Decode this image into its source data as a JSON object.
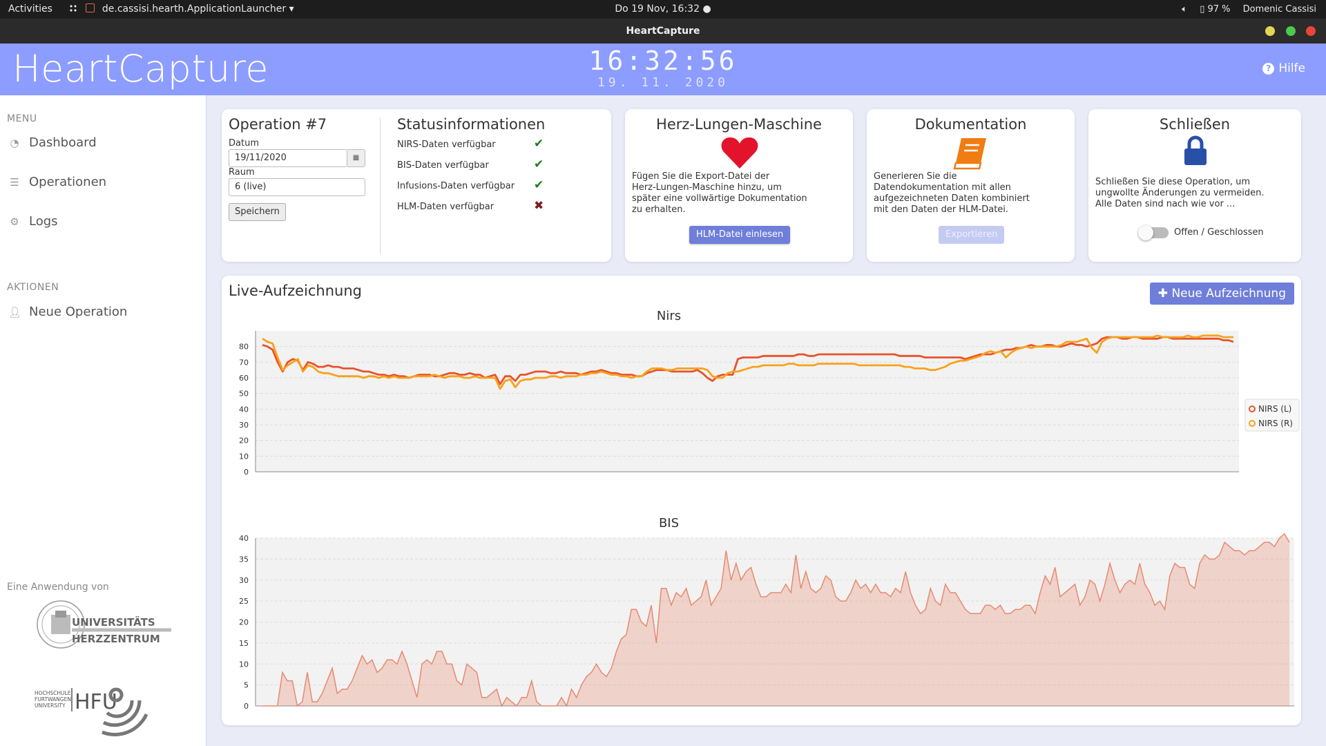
{
  "system_bar": {
    "activities": "Activities",
    "app_name": "de.cassisi.hearth.ApplicationLauncher",
    "clock": "Do 19 Nov, 16:32",
    "battery": "97 %",
    "user": "Domenic Cassisi"
  },
  "window": {
    "title": "HeartCapture"
  },
  "header": {
    "brand": "HeartCapture",
    "time": "16:32:56",
    "date": "19. 11. 2020",
    "help_label": "Hilfe"
  },
  "sidebar": {
    "menu_heading": "MENU",
    "menu_items": [
      {
        "label": "Dashboard",
        "icon": "dashboard-icon"
      },
      {
        "label": "Operationen",
        "icon": "list-icon"
      },
      {
        "label": "Logs",
        "icon": "gear-icon"
      }
    ],
    "actions_heading": "AKTIONEN",
    "action_items": [
      {
        "label": "Neue Operation",
        "icon": "add-user-icon"
      }
    ],
    "credit": "Eine Anwendung von",
    "logo_uhz": {
      "line1": "UNIVERSITÄTS",
      "line2": "HERZZENTRUM"
    },
    "logo_hfu": {
      "text": "HFU",
      "sub1": "HOCHSCHULE",
      "sub2": "FURTWANGEN",
      "sub3": "UNIVERSITY"
    }
  },
  "operation": {
    "title": "Operation #7",
    "date_label": "Datum",
    "date_value": "19/11/2020",
    "room_label": "Raum",
    "room_value": "6 (live)",
    "save_label": "Speichern"
  },
  "status": {
    "title": "Statusinformationen",
    "items": [
      {
        "label": "NIRS-Daten verfügbar",
        "ok": true,
        "mark": "✔"
      },
      {
        "label": "BIS-Daten verfügbar",
        "ok": true,
        "mark": "✔"
      },
      {
        "label": "Infusions-Daten verfügbar",
        "ok": true,
        "mark": "✔"
      },
      {
        "label": "HLM-Daten verfügbar",
        "ok": false,
        "mark": "✖"
      }
    ]
  },
  "hlm": {
    "title": "Herz-Lungen-Maschine",
    "desc1": "Fügen Sie die Export-Datei der",
    "desc2": "Herz-Lungen-Maschine hinzu, um",
    "desc3": "später eine vollwärtige Dokumentation",
    "desc4": "zu erhalten.",
    "button": "HLM-Datei einlesen",
    "icon": "heart-icon",
    "color": "#e3132c"
  },
  "doc": {
    "title": "Dokumentation",
    "desc1": "Generieren Sie die",
    "desc2": "Datendokumentation mit allen",
    "desc3": "aufgezeichneten Daten kombiniert",
    "desc4": "mit den Daten der HLM-Datei.",
    "button": "Exportieren",
    "icon": "book-icon",
    "color": "#f07c12"
  },
  "close": {
    "title": "Schließen",
    "desc1": "Schließen Sie diese Operation, um",
    "desc2": "ungwollte Änderungen zu vermeiden.",
    "desc3": "Alle Daten sind nach wie vor ...",
    "toggle_label": "Offen / Geschlossen",
    "toggle_on": false,
    "icon": "lock-icon",
    "color": "#2850a8"
  },
  "live": {
    "title": "Live-Aufzeichnung",
    "new_button": "Neue Aufzeichnung"
  },
  "chart_data": [
    {
      "type": "line",
      "title": "Nirs",
      "ylim": [
        0,
        90
      ],
      "yticks": [
        0,
        10,
        20,
        30,
        40,
        50,
        60,
        70,
        80
      ],
      "grid": true,
      "legend": "right",
      "series": [
        {
          "name": "NIRS (L)",
          "color": "#e8522a",
          "values": [
            81,
            80,
            78,
            70,
            64,
            70,
            72,
            71,
            65,
            70,
            69,
            67,
            67,
            68,
            67,
            67,
            66,
            66,
            66,
            65,
            64,
            64,
            63,
            62,
            62,
            61,
            62,
            61,
            61,
            60,
            61,
            62,
            62,
            62,
            61,
            61,
            62,
            63,
            63,
            62,
            62,
            63,
            62,
            62,
            60,
            61,
            62,
            56,
            61,
            61,
            58,
            62,
            62,
            63,
            64,
            64,
            64,
            63,
            63,
            64,
            63,
            63,
            63,
            62,
            63,
            64,
            64,
            65,
            64,
            63,
            63,
            62,
            62,
            62,
            61,
            61,
            63,
            64,
            65,
            65,
            65,
            64,
            64,
            64,
            64,
            64,
            65,
            63,
            60,
            58,
            61,
            62,
            62,
            62,
            72,
            73,
            73,
            73,
            73,
            74,
            74,
            74,
            74,
            74,
            74,
            74,
            75,
            75,
            74,
            74,
            75,
            75,
            75,
            75,
            75,
            75,
            75,
            75,
            75,
            75,
            75,
            75,
            75,
            75,
            75,
            75,
            74,
            74,
            74,
            74,
            74,
            73,
            73,
            73,
            73,
            73,
            73,
            73,
            73,
            72,
            73,
            74,
            75,
            75,
            75,
            76,
            77,
            78,
            78,
            79,
            79,
            80,
            81,
            80,
            80,
            81,
            81,
            80,
            80,
            81,
            82,
            81,
            81,
            80,
            81,
            82,
            85,
            86,
            86,
            86,
            85,
            85,
            86,
            86,
            85,
            85,
            85,
            85,
            86,
            86,
            85,
            85,
            85,
            85,
            85,
            85,
            85,
            85,
            85,
            85,
            84,
            84,
            83
          ]
        },
        {
          "name": "NIRS (R)",
          "color": "#f7a21b",
          "values": [
            85,
            83,
            82,
            73,
            65,
            68,
            70,
            72,
            64,
            68,
            67,
            64,
            63,
            63,
            62,
            61,
            61,
            61,
            61,
            61,
            60,
            61,
            61,
            60,
            61,
            60,
            61,
            60,
            60,
            60,
            61,
            61,
            61,
            61,
            62,
            61,
            60,
            61,
            61,
            61,
            60,
            60,
            61,
            60,
            60,
            60,
            60,
            53,
            58,
            59,
            54,
            58,
            59,
            59,
            60,
            60,
            60,
            61,
            61,
            60,
            61,
            61,
            61,
            62,
            62,
            63,
            63,
            64,
            63,
            62,
            62,
            61,
            61,
            60,
            61,
            61,
            64,
            66,
            66,
            66,
            65,
            65,
            66,
            66,
            66,
            66,
            66,
            66,
            65,
            61,
            60,
            60,
            63,
            64,
            64,
            65,
            66,
            67,
            67,
            68,
            68,
            68,
            68,
            68,
            69,
            69,
            68,
            68,
            68,
            68,
            69,
            69,
            69,
            69,
            69,
            69,
            69,
            69,
            68,
            68,
            68,
            68,
            68,
            68,
            68,
            68,
            68,
            67,
            67,
            66,
            66,
            66,
            65,
            65,
            66,
            67,
            69,
            70,
            71,
            71,
            72,
            73,
            74,
            76,
            77,
            76,
            77,
            73,
            76,
            78,
            79,
            80,
            79,
            80,
            80,
            80,
            80,
            80,
            81,
            83,
            83,
            83,
            84,
            85,
            79,
            76,
            83,
            85,
            86,
            86,
            86,
            86,
            86,
            86,
            86,
            86,
            86,
            87,
            86,
            86,
            86,
            86,
            86,
            87,
            86,
            86,
            87,
            87,
            87,
            87,
            86,
            86,
            86
          ]
        }
      ]
    },
    {
      "type": "area",
      "title": "BIS",
      "ylim": [
        0,
        40
      ],
      "yticks": [
        0,
        5,
        10,
        15,
        20,
        25,
        30,
        35,
        40
      ],
      "grid": true,
      "series": [
        {
          "name": "",
          "color": "#e8896e",
          "values": [
            0,
            0,
            0,
            0,
            8,
            6,
            6,
            0,
            1,
            8,
            1,
            1,
            3,
            6,
            9,
            3,
            4,
            4,
            6,
            9,
            12,
            10,
            11,
            8,
            9,
            11,
            11,
            10,
            13,
            10,
            6,
            2,
            10,
            11,
            10,
            13,
            13,
            10,
            10,
            6,
            5,
            10,
            9,
            8,
            2,
            2,
            3,
            4,
            0,
            2,
            1,
            0,
            2,
            2,
            6,
            1,
            0,
            0,
            0,
            0,
            2,
            0,
            4,
            2,
            5,
            7,
            8,
            10,
            8,
            7,
            9,
            13,
            16,
            17,
            23,
            23,
            20,
            19,
            24,
            15,
            28,
            28,
            24,
            27,
            26,
            28,
            24,
            25,
            26,
            30,
            24,
            26,
            28,
            37,
            30,
            34,
            30,
            32,
            33,
            29,
            26,
            26,
            27,
            27,
            27,
            29,
            27,
            36,
            28,
            32,
            28,
            27,
            28,
            31,
            30,
            26,
            25,
            25,
            27,
            30,
            28,
            29,
            27,
            29,
            27,
            27,
            26,
            28,
            27,
            32,
            27,
            24,
            22,
            23,
            28,
            25,
            24,
            29,
            27,
            27,
            25,
            23,
            22,
            22,
            22,
            24,
            24,
            23,
            24,
            22,
            22,
            23,
            23,
            24,
            24,
            22,
            27,
            31,
            29,
            33,
            26,
            27,
            28,
            29,
            24,
            26,
            30,
            29,
            25,
            29,
            34,
            30,
            27,
            29,
            30,
            29,
            34,
            29,
            27,
            24,
            25,
            23,
            31,
            34,
            33,
            33,
            29,
            28,
            34,
            36,
            35,
            35,
            36,
            39,
            38,
            37,
            37,
            36,
            37,
            37,
            38,
            39,
            39,
            38,
            40,
            41,
            39
          ]
        }
      ]
    }
  ]
}
